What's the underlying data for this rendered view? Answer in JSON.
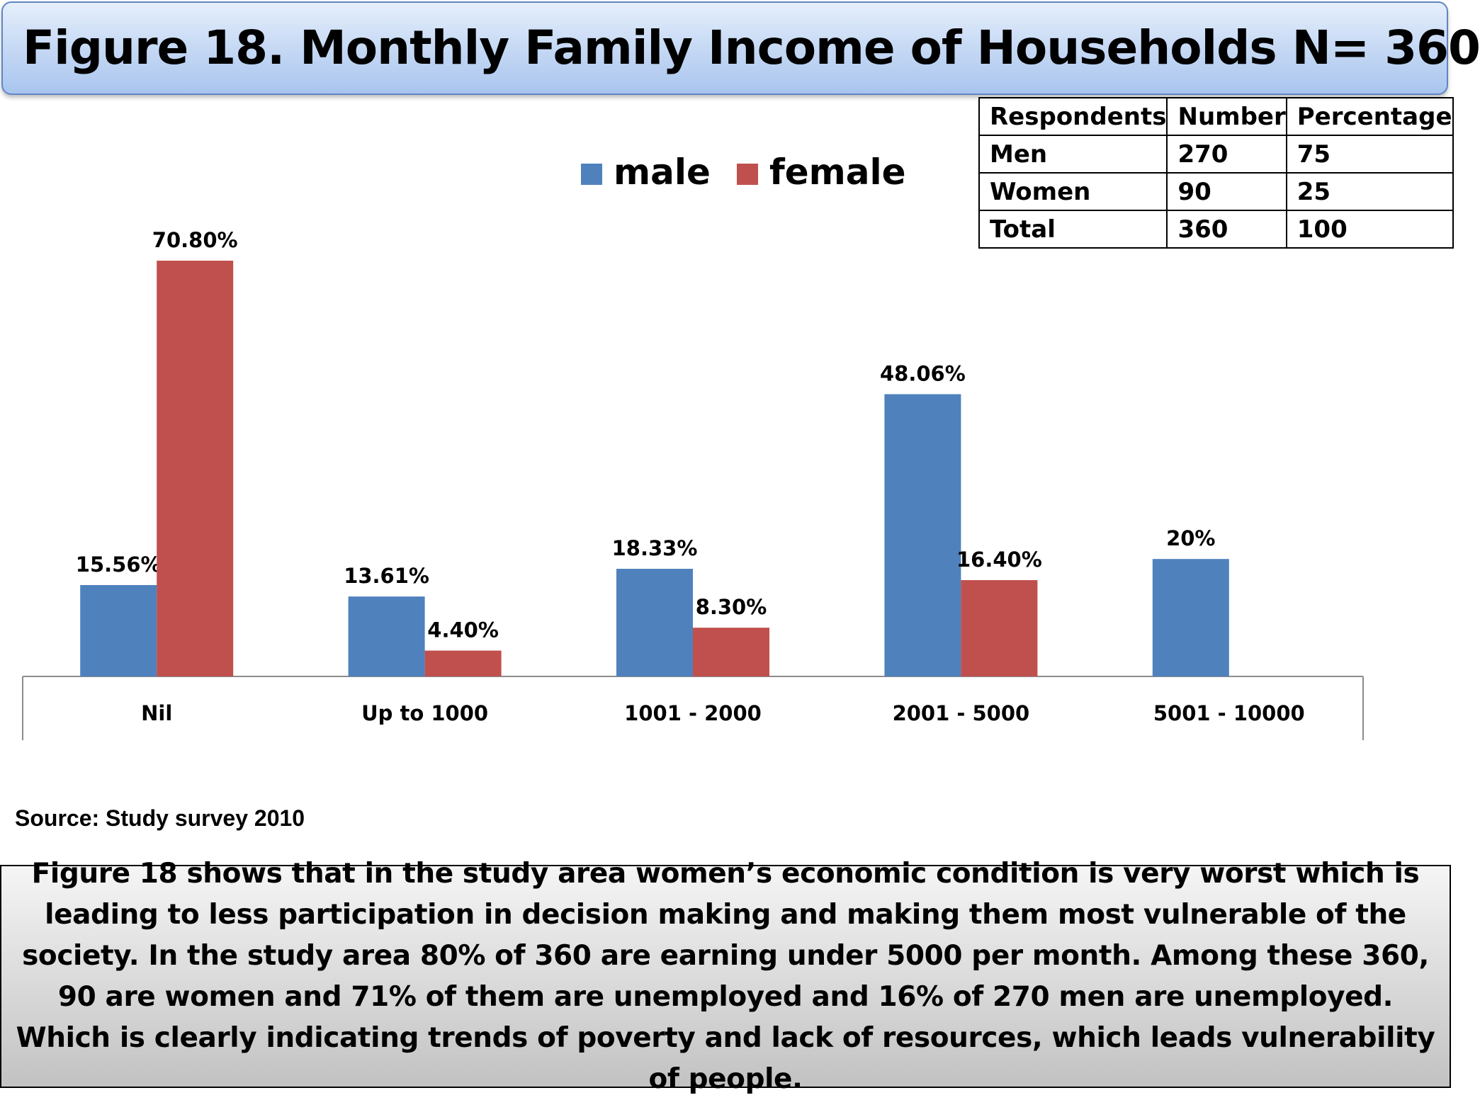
{
  "title": "Figure 18. Monthly Family Income of Households N= 360",
  "table": {
    "headers": [
      "Respondents",
      "Number",
      "Percentage"
    ],
    "rows": [
      [
        "Men",
        "270",
        "75"
      ],
      [
        "Women",
        "90",
        "25"
      ],
      [
        "Total",
        "360",
        "100"
      ]
    ]
  },
  "chart_data": {
    "type": "bar",
    "title": "",
    "xlabel": "",
    "ylabel": "",
    "ylim": [
      0,
      80
    ],
    "grid": false,
    "legend_position": "top-center",
    "categories": [
      "Nil",
      "Up to 1000",
      "1001 - 2000",
      "2001 - 5000",
      "5001 - 10000"
    ],
    "series": [
      {
        "name": "male",
        "color": "#4f81bd",
        "values": [
          15.56,
          13.61,
          18.33,
          48.06,
          20
        ],
        "labels": [
          "15.56%",
          "13.61%",
          "18.33%",
          "48.06%",
          "20%"
        ]
      },
      {
        "name": "female",
        "color": "#c0504d",
        "values": [
          70.8,
          4.4,
          8.3,
          16.4,
          null
        ],
        "labels": [
          "70.80%",
          "4.40%",
          "8.30%",
          "16.40%",
          null
        ]
      }
    ]
  },
  "source": "Source: Study survey 2010",
  "summary": "Figure 18 shows that in the study area women’s economic condition is very worst which is leading to less participation in decision making and making them most vulnerable of the society. In the study area 80% of 360 are earning under 5000 per month. Among these 360, 90 are women and 71% of them are unemployed and 16% of 270 men are unemployed.   Which is clearly indicating trends of poverty and lack of resources, which leads vulnerability of people."
}
